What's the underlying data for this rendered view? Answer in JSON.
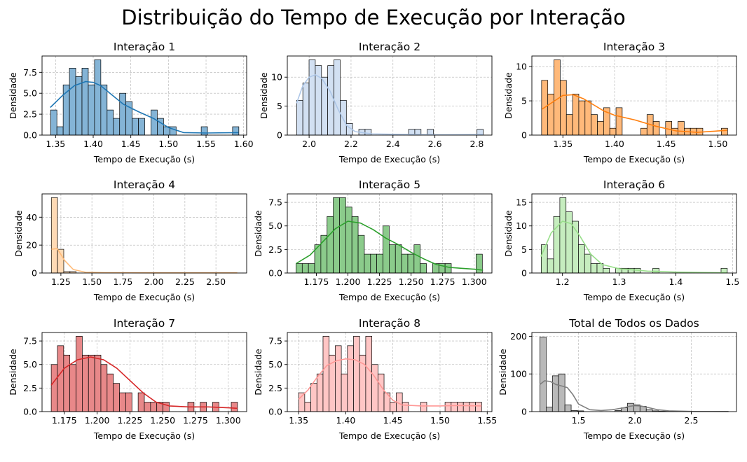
{
  "figure": {
    "title": "Distribuição do Tempo de Execução por Interação"
  },
  "chart_data": [
    {
      "type": "bar",
      "title": "Interação 1",
      "xlabel": "Tempo de Execução (s)",
      "ylabel": "Densidade",
      "color": "#1f77b4",
      "bin_start": 1.3434,
      "bin_width": 0.00834,
      "values": [
        3,
        1,
        6,
        8,
        7,
        8,
        6,
        9,
        6,
        3,
        2,
        5,
        4,
        2,
        2,
        0,
        3,
        2,
        1,
        1,
        0,
        0,
        0,
        0,
        1,
        0,
        0,
        0,
        0,
        1
      ],
      "kde_x": [
        1.343,
        1.36,
        1.375,
        1.39,
        1.4,
        1.41,
        1.425,
        1.44,
        1.46,
        1.48,
        1.5,
        1.52,
        1.55,
        1.593
      ],
      "kde_y": [
        3.3,
        4.8,
        5.9,
        6.4,
        6.3,
        5.9,
        4.8,
        3.7,
        2.8,
        2.0,
        0.9,
        0.3,
        0.25,
        0.3
      ],
      "xlim": [
        1.332,
        1.604
      ],
      "ylim": [
        0,
        9.45
      ],
      "xticks": [
        1.35,
        1.4,
        1.45,
        1.5,
        1.55,
        1.6
      ],
      "xtick_labels": [
        "1.35",
        "1.40",
        "1.45",
        "1.50",
        "1.55",
        "1.60"
      ],
      "yticks": [
        0,
        2.5,
        5,
        7.5
      ],
      "ytick_labels": [
        "0.0",
        "2.5",
        "5.0",
        "7.5"
      ]
    },
    {
      "type": "bar",
      "title": "Interação 2",
      "xlabel": "Tempo de Execução (s)",
      "ylabel": "Densidade",
      "color": "#aec7e8",
      "bin_start": 1.9404,
      "bin_width": 0.02967,
      "values": [
        6,
        9,
        13,
        12,
        10,
        12,
        13,
        6,
        2,
        0,
        1,
        1,
        0,
        0,
        0,
        0,
        0,
        0,
        1,
        1,
        0,
        1,
        0,
        0,
        0,
        0,
        0,
        0,
        0,
        1
      ],
      "kde_x": [
        1.94,
        1.97,
        2.0,
        2.03,
        2.06,
        2.1,
        2.14,
        2.18,
        2.22,
        2.3,
        2.4,
        2.6,
        2.83
      ],
      "kde_y": [
        5.5,
        8.5,
        10.0,
        10.4,
        9.8,
        7.6,
        4.3,
        1.6,
        0.6,
        0.2,
        0.15,
        0.05,
        0.1
      ],
      "xlim": [
        1.896,
        2.872
      ],
      "ylim": [
        0,
        13.65
      ],
      "xticks": [
        2.0,
        2.2,
        2.4,
        2.6,
        2.8
      ],
      "xtick_labels": [
        "2.0",
        "2.2",
        "2.4",
        "2.6",
        "2.8"
      ],
      "yticks": [
        0,
        5,
        10
      ],
      "ytick_labels": [
        "0",
        "5",
        "10"
      ]
    },
    {
      "type": "bar",
      "title": "Interação 3",
      "xlabel": "Tempo de Execução (s)",
      "ylabel": "Densidade",
      "color": "#ff7f0e",
      "bin_start": 1.3294,
      "bin_width": 0.006,
      "values": [
        8,
        6,
        11,
        8,
        3,
        6,
        5,
        5,
        3,
        2,
        4,
        1,
        4,
        0,
        0,
        0,
        1,
        3,
        2,
        0,
        2,
        1,
        2,
        1,
        1,
        1,
        0,
        0,
        0,
        1
      ],
      "kde_x": [
        1.33,
        1.34,
        1.35,
        1.36,
        1.37,
        1.38,
        1.39,
        1.4,
        1.42,
        1.44,
        1.46,
        1.48,
        1.5,
        1.509
      ],
      "kde_y": [
        3.8,
        4.8,
        5.8,
        5.9,
        5.3,
        4.4,
        3.5,
        2.9,
        2.2,
        1.3,
        0.6,
        0.4,
        0.6,
        0.7
      ],
      "xlim": [
        1.32,
        1.518
      ],
      "ylim": [
        0,
        11.55
      ],
      "xticks": [
        1.35,
        1.4,
        1.45,
        1.5
      ],
      "xtick_labels": [
        "1.35",
        "1.40",
        "1.45",
        "1.50"
      ],
      "yticks": [
        0,
        5,
        10
      ],
      "ytick_labels": [
        "0",
        "5",
        "10"
      ]
    },
    {
      "type": "bar",
      "title": "Interação 4",
      "xlabel": "Tempo de Execução (s)",
      "ylabel": "Densidade",
      "color": "#ffbb78",
      "bin_start": 1.173,
      "bin_width": 0.05,
      "values": [
        54,
        17,
        1,
        1,
        0,
        0,
        0,
        0,
        0,
        0,
        0,
        0,
        0,
        0,
        0,
        0,
        0,
        0,
        0,
        0,
        0,
        0,
        0,
        0,
        0,
        0,
        0,
        0,
        0,
        0
      ],
      "kde_x": [
        1.173,
        1.22,
        1.28,
        1.35,
        1.45,
        1.6,
        2.0,
        2.673
      ],
      "kde_y": [
        17,
        17.5,
        9,
        2.5,
        0.5,
        0.2,
        0.1,
        0.1
      ],
      "xlim": [
        1.098,
        2.748
      ],
      "ylim": [
        0,
        56.7
      ],
      "xticks": [
        1.25,
        1.5,
        1.75,
        2.0,
        2.25,
        2.5
      ],
      "xtick_labels": [
        "1.25",
        "1.50",
        "1.75",
        "2.00",
        "2.25",
        "2.50"
      ],
      "yticks": [
        0,
        20,
        40
      ],
      "ytick_labels": [
        "0",
        "20",
        "40"
      ]
    },
    {
      "type": "bar",
      "title": "Interação 5",
      "xlabel": "Tempo de Execução (s)",
      "ylabel": "Densidade",
      "color": "#2ca02c",
      "bin_start": 1.1589,
      "bin_width": 0.004917,
      "values": [
        1,
        1,
        1,
        3,
        4,
        6,
        8,
        8,
        7,
        6,
        4,
        2,
        2,
        2,
        5,
        3,
        3,
        2,
        2,
        3,
        1,
        0,
        1,
        1,
        1,
        0,
        0,
        0,
        0,
        2
      ],
      "kde_x": [
        1.159,
        1.17,
        1.18,
        1.19,
        1.2,
        1.21,
        1.22,
        1.23,
        1.24,
        1.25,
        1.26,
        1.27,
        1.28,
        1.29,
        1.3,
        1.307
      ],
      "kde_y": [
        1.0,
        1.9,
        3.3,
        4.7,
        5.5,
        5.3,
        4.6,
        3.7,
        3.0,
        2.2,
        1.5,
        0.9,
        0.6,
        0.5,
        0.4,
        0.3
      ],
      "xlim": [
        1.152,
        1.314
      ],
      "ylim": [
        0,
        8.4
      ],
      "xticks": [
        1.175,
        1.2,
        1.225,
        1.25,
        1.275,
        1.3
      ],
      "xtick_labels": [
        "1.175",
        "1.200",
        "1.225",
        "1.250",
        "1.275",
        "1.300"
      ],
      "yticks": [
        0,
        2.5,
        5,
        7.5
      ],
      "ytick_labels": [
        "0.0",
        "2.5",
        "5.0",
        "7.5"
      ]
    },
    {
      "type": "bar",
      "title": "Interação 6",
      "xlabel": "Tempo de Execução (s)",
      "ylabel": "Densidade",
      "color": "#98df8a",
      "bin_start": 1.1625,
      "bin_width": 0.01094,
      "values": [
        6,
        3,
        12,
        16,
        13,
        11,
        6,
        4,
        2,
        2,
        1,
        0,
        1,
        1,
        1,
        1,
        0,
        0,
        1,
        0,
        0,
        0,
        0,
        0,
        0,
        0,
        0,
        0,
        0,
        1
      ],
      "kde_x": [
        1.162,
        1.18,
        1.2,
        1.215,
        1.23,
        1.25,
        1.27,
        1.3,
        1.35,
        1.4,
        1.45,
        1.49
      ],
      "kde_y": [
        3.5,
        8.5,
        11,
        10.5,
        8,
        4,
        1.8,
        0.9,
        0.4,
        0.2,
        0.1,
        0.05
      ],
      "xlim": [
        1.146,
        1.507
      ],
      "ylim": [
        0,
        16.8
      ],
      "xticks": [
        1.2,
        1.3,
        1.4,
        1.5
      ],
      "xtick_labels": [
        "1.2",
        "1.3",
        "1.4",
        "1.5"
      ],
      "yticks": [
        0,
        5,
        10,
        15
      ],
      "ytick_labels": [
        "0",
        "5",
        "10",
        "15"
      ]
    },
    {
      "type": "bar",
      "title": "Interação 7",
      "xlabel": "Tempo de Execução (s)",
      "ylabel": "Densidade",
      "color": "#d62728",
      "bin_start": 1.165,
      "bin_width": 0.004733,
      "values": [
        5,
        7,
        6,
        5,
        8,
        6,
        6,
        6,
        5,
        4,
        3,
        2,
        2,
        0,
        2,
        1,
        1,
        1,
        1,
        0,
        0,
        0,
        1,
        0,
        1,
        0,
        1,
        0,
        0,
        1
      ],
      "kde_x": [
        1.165,
        1.175,
        1.185,
        1.195,
        1.205,
        1.215,
        1.225,
        1.235,
        1.245,
        1.255,
        1.27,
        1.285,
        1.3,
        1.307
      ],
      "kde_y": [
        2.8,
        4.6,
        5.5,
        5.8,
        5.5,
        4.6,
        3.3,
        2.0,
        1.0,
        0.6,
        0.5,
        0.5,
        0.4,
        0.35
      ],
      "xlim": [
        1.158,
        1.314
      ],
      "ylim": [
        0,
        8.4
      ],
      "xticks": [
        1.175,
        1.2,
        1.225,
        1.25,
        1.275,
        1.3
      ],
      "xtick_labels": [
        "1.175",
        "1.200",
        "1.225",
        "1.250",
        "1.275",
        "1.300"
      ],
      "yticks": [
        0,
        2.5,
        5,
        7.5
      ],
      "ytick_labels": [
        "0.0",
        "2.5",
        "5.0",
        "7.5"
      ]
    },
    {
      "type": "bar",
      "title": "Interação 8",
      "xlabel": "Tempo de Execução (s)",
      "ylabel": "Densidade",
      "color": "#ff9896",
      "bin_start": 1.35,
      "bin_width": 0.00647,
      "values": [
        2,
        1,
        3,
        4,
        8,
        6,
        7,
        4,
        7,
        8,
        6,
        8,
        5,
        4,
        2,
        1,
        2,
        1,
        0,
        0,
        1,
        0,
        0,
        0,
        1,
        1,
        1,
        1,
        1,
        1
      ],
      "kde_x": [
        1.35,
        1.36,
        1.37,
        1.38,
        1.39,
        1.4,
        1.41,
        1.42,
        1.43,
        1.44,
        1.45,
        1.46,
        1.48,
        1.5,
        1.52,
        1.544
      ],
      "kde_y": [
        1.3,
        2.3,
        3.7,
        4.9,
        5.4,
        5.6,
        5.5,
        5.0,
        3.8,
        2.3,
        1.2,
        0.7,
        0.6,
        0.6,
        0.65,
        0.6
      ],
      "xlim": [
        1.338,
        1.555
      ],
      "ylim": [
        0,
        8.4
      ],
      "xticks": [
        1.35,
        1.4,
        1.45,
        1.5,
        1.55
      ],
      "xtick_labels": [
        "1.35",
        "1.40",
        "1.45",
        "1.50",
        "1.55"
      ],
      "yticks": [
        0,
        2.5,
        5,
        7.5
      ],
      "ytick_labels": [
        "0.0",
        "2.5",
        "5.0",
        "7.5"
      ]
    },
    {
      "type": "bar",
      "title": "Total de Todos os Dados",
      "xlabel": "Tempo de Execução (s)",
      "ylabel": "Densidade",
      "color": "#7f7f7f",
      "bin_start": 1.157,
      "bin_width": 0.0555,
      "values": [
        198,
        12,
        95,
        100,
        18,
        3,
        2,
        0,
        0,
        0,
        0,
        0,
        3,
        10,
        22,
        18,
        14,
        5,
        2,
        1,
        1,
        1,
        0,
        0,
        0,
        0,
        0,
        0,
        0,
        0
      ],
      "kde_x": [
        1.157,
        1.2,
        1.25,
        1.3,
        1.35,
        1.4,
        1.45,
        1.5,
        1.6,
        1.7,
        1.8,
        1.9,
        1.95,
        2.0,
        2.05,
        2.1,
        2.2,
        2.3,
        2.5,
        2.83
      ],
      "kde_y": [
        72,
        82,
        80,
        72,
        68,
        64,
        45,
        20,
        5,
        3,
        5,
        10,
        14,
        16,
        15,
        12,
        5,
        2,
        0.5,
        0.3
      ],
      "xlim": [
        1.086,
        2.901
      ],
      "ylim": [
        0,
        210
      ],
      "xticks": [
        1.5,
        2.0,
        2.5
      ],
      "xtick_labels": [
        "1.5",
        "2.0",
        "2.5"
      ],
      "yticks": [
        0,
        100,
        200
      ],
      "ytick_labels": [
        "0",
        "100",
        "200"
      ]
    }
  ]
}
